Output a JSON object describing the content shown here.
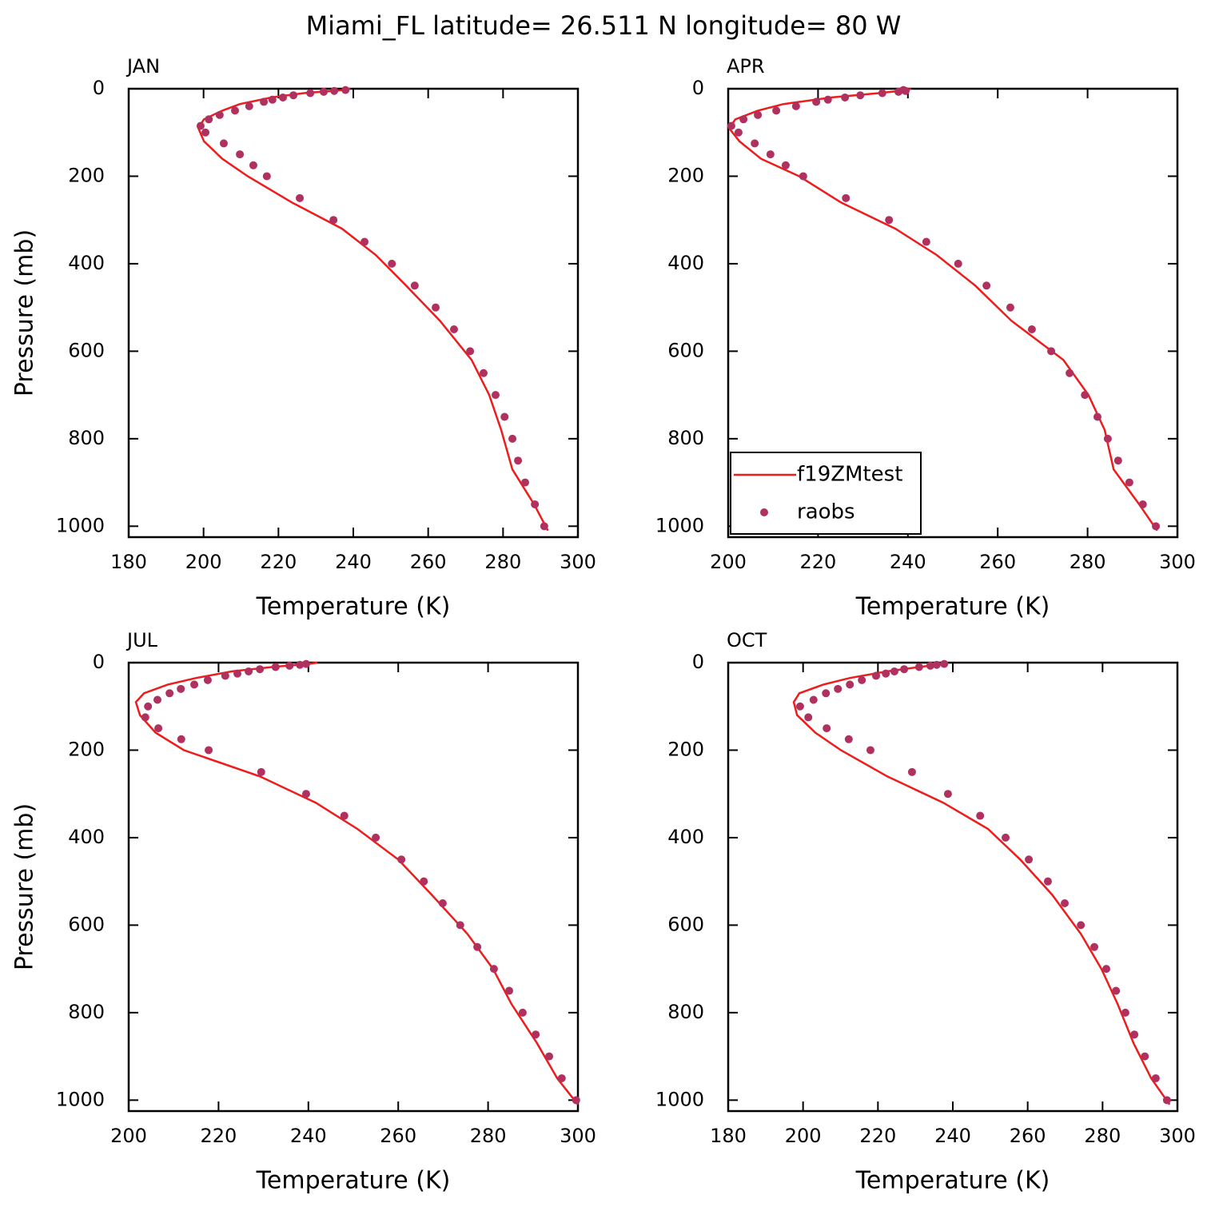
{
  "title": "Miami_FL  latitude= 26.511 N longitude= 80 W",
  "chart_data": [
    {
      "type": "line",
      "title": "JAN",
      "xlabel": "Temperature (K)",
      "ylabel": "Pressure (mb)",
      "xlim": [
        180,
        300
      ],
      "xticks": [
        180,
        200,
        220,
        240,
        260,
        280,
        300
      ],
      "ylim": [
        1025,
        0
      ],
      "yticks": [
        0,
        200,
        400,
        600,
        800,
        1000
      ],
      "series": [
        {
          "style": "line",
          "color": "#ee1c1c",
          "x": [
            292.0,
            288.3,
            282.5,
            279.5,
            276.3,
            271.6,
            263.1,
            254.1,
            246.0,
            237.0,
            223.6,
            211.8,
            205.0,
            200.1,
            198.6,
            200.1,
            205.0,
            209.7,
            218.2,
            226.8,
            237.4,
            239.2
          ],
          "values": [
            1010,
            950,
            870,
            780,
            700,
            620,
            530,
            450,
            380,
            320,
            260,
            200,
            160,
            120,
            90,
            70,
            50,
            35,
            20,
            10,
            3,
            0
          ]
        },
        {
          "style": "dots",
          "color": "#b03060",
          "x": [
            291.0,
            288.5,
            285.9,
            284.0,
            282.5,
            280.4,
            278.0,
            274.8,
            271.2,
            266.9,
            262.0,
            256.4,
            250.3,
            243.0,
            234.7,
            225.7,
            216.9,
            213.3,
            209.7,
            205.4,
            200.5,
            199.2,
            201.4,
            204.3,
            208.4,
            212.2,
            216.1,
            218.4,
            221.2,
            224.0,
            228.5,
            232.1,
            234.9,
            237.9
          ],
          "values": [
            1000,
            950,
            900,
            850,
            800,
            750,
            700,
            650,
            600,
            550,
            500,
            450,
            400,
            350,
            300,
            250,
            200,
            175,
            150,
            125,
            100,
            85,
            70,
            60,
            50,
            40,
            30,
            25,
            20,
            15,
            10,
            7,
            5,
            3
          ]
        }
      ]
    },
    {
      "type": "line",
      "title": "APR",
      "xlabel": "Temperature (K)",
      "legend": "lower left",
      "xlim": [
        200,
        300
      ],
      "xticks": [
        200,
        220,
        240,
        260,
        280,
        300
      ],
      "ylim": [
        1025,
        0
      ],
      "yticks": [
        0,
        200,
        400,
        600,
        800,
        1000
      ],
      "series": [
        {
          "name": "f19ZMtest",
          "style": "line",
          "color": "#ee1c1c",
          "x": [
            295.5,
            291.5,
            285.8,
            283.8,
            280.2,
            274.6,
            263.0,
            255.0,
            246.4,
            237.2,
            225.1,
            215.8,
            207.3,
            202.5,
            200.2,
            201.6,
            206.6,
            212.3,
            223.0,
            233.6,
            239.9,
            240.7
          ],
          "values": [
            1010,
            950,
            870,
            780,
            700,
            620,
            530,
            450,
            380,
            320,
            260,
            200,
            160,
            120,
            90,
            70,
            50,
            35,
            20,
            10,
            3,
            0
          ]
        },
        {
          "name": "raobs",
          "style": "dots",
          "color": "#b03060",
          "x": [
            295.2,
            292.3,
            289.3,
            286.8,
            284.5,
            282.2,
            279.4,
            276.0,
            271.9,
            267.6,
            262.8,
            257.5,
            251.2,
            244.1,
            235.8,
            226.2,
            216.7,
            212.8,
            209.4,
            205.9,
            202.3,
            200.7,
            203.4,
            206.6,
            210.7,
            215.1,
            219.6,
            222.2,
            226.0,
            229.4,
            234.3,
            237.9,
            239.5,
            239.0
          ],
          "values": [
            1000,
            950,
            900,
            850,
            800,
            750,
            700,
            650,
            600,
            550,
            500,
            450,
            400,
            350,
            300,
            250,
            200,
            175,
            150,
            125,
            100,
            85,
            70,
            60,
            50,
            40,
            30,
            25,
            20,
            15,
            10,
            7,
            5,
            3
          ]
        }
      ]
    },
    {
      "type": "line",
      "title": "JUL",
      "xlabel": "Temperature (K)",
      "ylabel": "Pressure (mb)",
      "xlim": [
        200,
        300
      ],
      "xticks": [
        200,
        220,
        240,
        260,
        280,
        300
      ],
      "ylim": [
        1025,
        0
      ],
      "yticks": [
        0,
        200,
        400,
        600,
        800,
        1000
      ],
      "series": [
        {
          "style": "line",
          "color": "#ee1c1c",
          "x": [
            300.0,
            295.4,
            290.9,
            285.2,
            281.1,
            275.4,
            267.4,
            260.0,
            250.9,
            241.6,
            229.2,
            212.3,
            206.0,
            202.5,
            201.6,
            203.4,
            208.7,
            215.0,
            223.0,
            231.9,
            239.9,
            242.0
          ],
          "values": [
            1010,
            950,
            870,
            780,
            700,
            620,
            530,
            450,
            380,
            320,
            260,
            200,
            160,
            120,
            90,
            70,
            50,
            35,
            20,
            10,
            3,
            0
          ]
        },
        {
          "style": "dots",
          "color": "#b03060",
          "x": [
            299.6,
            296.4,
            293.6,
            290.6,
            287.7,
            284.7,
            281.3,
            277.6,
            273.8,
            269.9,
            265.7,
            260.7,
            255.0,
            248.0,
            239.5,
            229.5,
            217.8,
            211.7,
            206.6,
            203.7,
            204.3,
            206.4,
            209.1,
            211.6,
            214.6,
            217.6,
            221.5,
            224.2,
            226.7,
            229.2,
            232.7,
            235.8,
            238.1,
            239.5
          ],
          "values": [
            1000,
            950,
            900,
            850,
            800,
            750,
            700,
            650,
            600,
            550,
            500,
            450,
            400,
            350,
            300,
            250,
            200,
            175,
            150,
            125,
            100,
            85,
            70,
            60,
            50,
            40,
            30,
            25,
            20,
            15,
            10,
            7,
            5,
            3
          ]
        }
      ]
    },
    {
      "type": "line",
      "title": "OCT",
      "xlabel": "Temperature (K)",
      "xlim": [
        180,
        300
      ],
      "xticks": [
        180,
        200,
        220,
        240,
        260,
        280,
        300
      ],
      "ylim": [
        1025,
        0
      ],
      "yticks": [
        0,
        200,
        400,
        600,
        800,
        1000
      ],
      "series": [
        {
          "style": "line",
          "color": "#ee1c1c",
          "x": [
            297.9,
            293.0,
            288.3,
            284.0,
            279.7,
            274.2,
            266.5,
            258.0,
            249.4,
            237.4,
            222.5,
            210.1,
            203.3,
            198.4,
            197.5,
            199.0,
            205.4,
            212.5,
            222.5,
            231.0,
            237.4,
            238.7
          ],
          "values": [
            1010,
            950,
            870,
            780,
            700,
            620,
            530,
            450,
            380,
            320,
            260,
            200,
            160,
            120,
            90,
            70,
            50,
            35,
            20,
            10,
            3,
            0
          ]
        },
        {
          "style": "dots",
          "color": "#b03060",
          "x": [
            297.2,
            294.2,
            291.3,
            288.5,
            286.1,
            283.6,
            281.0,
            277.8,
            274.2,
            269.9,
            265.4,
            260.3,
            254.1,
            247.3,
            238.7,
            229.1,
            218.0,
            212.2,
            206.3,
            201.4,
            199.2,
            202.8,
            206.1,
            209.3,
            212.5,
            215.7,
            219.5,
            222.1,
            224.4,
            227.0,
            231.0,
            234.0,
            235.7,
            237.7
          ],
          "values": [
            1000,
            950,
            900,
            850,
            800,
            750,
            700,
            650,
            600,
            550,
            500,
            450,
            400,
            350,
            300,
            250,
            200,
            175,
            150,
            125,
            100,
            85,
            70,
            60,
            50,
            40,
            30,
            25,
            20,
            15,
            10,
            7,
            5,
            3
          ]
        }
      ]
    }
  ]
}
